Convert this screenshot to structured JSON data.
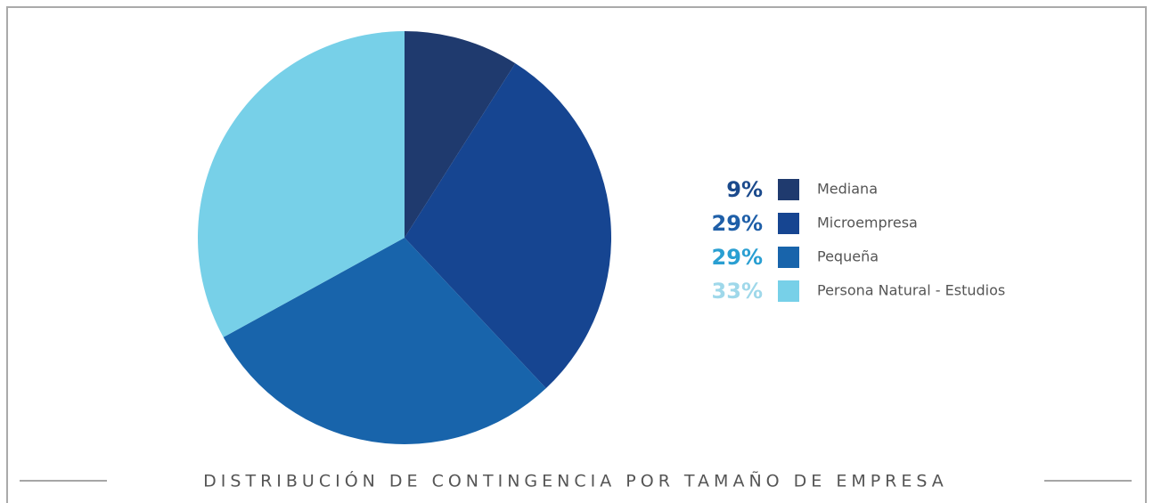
{
  "chart_data": {
    "type": "pie",
    "title": "DISTRIBUCIÓN DE CONTINGENCIA POR TAMAÑO DE EMPRESA",
    "categories": [
      "Mediana",
      "Microempresa",
      "Pequeña",
      "Persona Natural - Estudios"
    ],
    "values": [
      9,
      29,
      29,
      33
    ],
    "value_labels": [
      "9%",
      "29%",
      "29%",
      "33%"
    ],
    "colors": [
      "#1f3a6e",
      "#164591",
      "#1864ab",
      "#77d0e8"
    ],
    "value_label_colors": [
      "#1b4a8c",
      "#1f5fa8",
      "#2a9fd2",
      "#9fd8ea"
    ],
    "legend": "right"
  }
}
